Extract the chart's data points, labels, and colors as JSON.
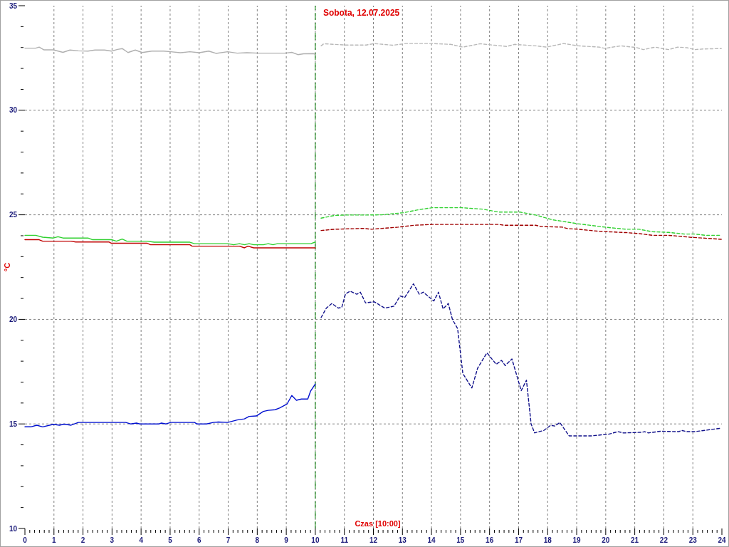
{
  "chart_data": {
    "type": "line",
    "xlabel": "Czas [10:00]",
    "ylabel": "°C",
    "xlim": [
      0,
      24
    ],
    "ylim": [
      10,
      35
    ],
    "xticks": [
      0,
      {
        "value": 0.167,
        "label": null
      },
      {
        "value": 0.333,
        "label": null
      },
      {
        "value": 0.5,
        "label": null
      },
      {
        "value": 0.667,
        "label": null
      },
      {
        "value": 0.833,
        "label": null
      },
      1,
      {
        "value": 1.167,
        "label": null
      },
      {
        "value": 1.333,
        "label": null
      },
      {
        "value": 1.5,
        "label": null
      },
      {
        "value": 1.667,
        "label": null
      },
      {
        "value": 1.833,
        "label": null
      },
      2,
      {
        "value": 2.167,
        "label": null
      },
      {
        "value": 2.333,
        "label": null
      },
      {
        "value": 2.5,
        "label": null
      },
      {
        "value": 2.667,
        "label": null
      },
      {
        "value": 2.833,
        "label": null
      },
      3,
      {
        "value": 3.167,
        "label": null
      },
      {
        "value": 3.333,
        "label": null
      },
      {
        "value": 3.5,
        "label": null
      },
      {
        "value": 3.667,
        "label": null
      },
      {
        "value": 3.833,
        "label": null
      },
      4,
      {
        "value": 4.167,
        "label": null
      },
      {
        "value": 4.333,
        "label": null
      },
      {
        "value": 4.5,
        "label": null
      },
      {
        "value": 4.667,
        "label": null
      },
      {
        "value": 4.833,
        "label": null
      },
      5,
      {
        "value": 5.167,
        "label": null
      },
      {
        "value": 5.333,
        "label": null
      },
      {
        "value": 5.5,
        "label": null
      },
      {
        "value": 5.667,
        "label": null
      },
      {
        "value": 5.833,
        "label": null
      },
      6,
      {
        "value": 6.167,
        "label": null
      },
      {
        "value": 6.333,
        "label": null
      },
      {
        "value": 6.5,
        "label": null
      },
      {
        "value": 6.667,
        "label": null
      },
      {
        "value": 6.833,
        "label": null
      },
      7,
      {
        "value": 7.167,
        "label": null
      },
      {
        "value": 7.333,
        "label": null
      },
      {
        "value": 7.5,
        "label": null
      },
      {
        "value": 7.667,
        "label": null
      },
      {
        "value": 7.833,
        "label": null
      },
      8,
      {
        "value": 8.167,
        "label": null
      },
      {
        "value": 8.333,
        "label": null
      },
      {
        "value": 8.5,
        "label": null
      },
      {
        "value": 8.667,
        "label": null
      },
      {
        "value": 8.833,
        "label": null
      },
      9,
      {
        "value": 9.167,
        "label": null
      },
      {
        "value": 9.333,
        "label": null
      },
      {
        "value": 9.5,
        "label": null
      },
      {
        "value": 9.667,
        "label": null
      },
      {
        "value": 9.833,
        "label": null
      },
      10,
      {
        "value": 10.167,
        "label": null
      },
      {
        "value": 10.333,
        "label": null
      },
      {
        "value": 10.5,
        "label": null
      },
      {
        "value": 10.667,
        "label": null
      },
      {
        "value": 10.833,
        "label": null
      },
      11,
      {
        "value": 11.167,
        "label": null
      },
      {
        "value": 11.333,
        "label": null
      },
      {
        "value": 11.5,
        "label": null
      },
      {
        "value": 11.667,
        "label": null
      },
      {
        "value": 11.833,
        "label": null
      },
      12,
      {
        "value": 12.167,
        "label": null
      },
      {
        "value": 12.333,
        "label": null
      },
      {
        "value": 12.5,
        "label": null
      },
      {
        "value": 12.667,
        "label": null
      },
      {
        "value": 12.833,
        "label": null
      },
      13,
      {
        "value": 13.167,
        "label": null
      },
      {
        "value": 13.333,
        "label": null
      },
      {
        "value": 13.5,
        "label": null
      },
      {
        "value": 13.667,
        "label": null
      },
      {
        "value": 13.833,
        "label": null
      },
      14,
      {
        "value": 14.167,
        "label": null
      },
      {
        "value": 14.333,
        "label": null
      },
      {
        "value": 14.5,
        "label": null
      },
      {
        "value": 14.667,
        "label": null
      },
      {
        "value": 14.833,
        "label": null
      },
      15,
      {
        "value": 15.167,
        "label": null
      },
      {
        "value": 15.333,
        "label": null
      },
      {
        "value": 15.5,
        "label": null
      },
      {
        "value": 15.667,
        "label": null
      },
      {
        "value": 15.833,
        "label": null
      },
      16,
      {
        "value": 16.167,
        "label": null
      },
      {
        "value": 16.333,
        "label": null
      },
      {
        "value": 16.5,
        "label": null
      },
      {
        "value": 16.667,
        "label": null
      },
      {
        "value": 16.833,
        "label": null
      },
      17,
      {
        "value": 17.167,
        "label": null
      },
      {
        "value": 17.333,
        "label": null
      },
      {
        "value": 17.5,
        "label": null
      },
      {
        "value": 17.667,
        "label": null
      },
      {
        "value": 17.833,
        "label": null
      },
      18,
      {
        "value": 18.167,
        "label": null
      },
      {
        "value": 18.333,
        "label": null
      },
      {
        "value": 18.5,
        "label": null
      },
      {
        "value": 18.667,
        "label": null
      },
      {
        "value": 18.833,
        "label": null
      },
      19,
      {
        "value": 19.167,
        "label": null
      },
      {
        "value": 19.333,
        "label": null
      },
      {
        "value": 19.5,
        "label": null
      },
      {
        "value": 19.667,
        "label": null
      },
      {
        "value": 19.833,
        "label": null
      },
      20,
      {
        "value": 20.167,
        "label": null
      },
      {
        "value": 20.333,
        "label": null
      },
      {
        "value": 20.5,
        "label": null
      },
      {
        "value": 20.667,
        "label": null
      },
      {
        "value": 20.833,
        "label": null
      },
      21,
      {
        "value": 21.167,
        "label": null
      },
      {
        "value": 21.333,
        "label": null
      },
      {
        "value": 21.5,
        "label": null
      },
      {
        "value": 21.667,
        "label": null
      },
      {
        "value": 21.833,
        "label": null
      },
      22,
      {
        "value": 22.167,
        "label": null
      },
      {
        "value": 22.333,
        "label": null
      },
      {
        "value": 22.5,
        "label": null
      },
      {
        "value": 22.667,
        "label": null
      },
      {
        "value": 22.833,
        "label": null
      },
      23,
      {
        "value": 23.167,
        "label": null
      },
      {
        "value": 23.333,
        "label": null
      },
      {
        "value": 23.5,
        "label": null
      },
      {
        "value": 23.667,
        "label": null
      },
      {
        "value": 23.833,
        "label": null
      },
      24
    ],
    "yticks": [
      10,
      {
        "value": 11,
        "label": null
      },
      {
        "value": 12,
        "label": null
      },
      {
        "value": 13,
        "label": null
      },
      {
        "value": 14,
        "label": null
      },
      15,
      {
        "value": 16,
        "label": null
      },
      {
        "value": 17,
        "label": null
      },
      {
        "value": 18,
        "label": null
      },
      {
        "value": 19,
        "label": null
      },
      20,
      {
        "value": 21,
        "label": null
      },
      {
        "value": 22,
        "label": null
      },
      {
        "value": 23,
        "label": null
      },
      {
        "value": 24,
        "label": null
      },
      25,
      {
        "value": 26,
        "label": null
      },
      {
        "value": 27,
        "label": null
      },
      {
        "value": 28,
        "label": null
      },
      {
        "value": 29,
        "label": null
      },
      30,
      {
        "value": 31,
        "label": null
      },
      {
        "value": 32,
        "label": null
      },
      {
        "value": 33,
        "label": null
      },
      {
        "value": 34,
        "label": null
      },
      35
    ],
    "grid": true,
    "ref_lines": [
      {
        "axis": "x",
        "value": 10,
        "label": "Sobota, 12.07.2025",
        "color": "#008000",
        "line_style": "dashed"
      }
    ],
    "series": [
      {
        "color": "#b0b0b0",
        "line_style": "solid",
        "x": [
          0,
          0.37,
          0.49,
          0.65,
          0.98,
          1.31,
          1.55,
          1.84,
          2.17,
          2.41,
          2.74,
          2.98,
          3.19,
          3.35,
          3.55,
          3.8,
          4.04,
          4.37,
          4.78,
          5.02,
          5.35,
          5.68,
          6.0,
          6.33,
          6.58,
          6.98,
          7.31,
          7.64,
          8.05,
          8.95,
          9.19,
          9.4,
          9.6,
          9.93,
          10.0
        ],
        "values": [
          32.97,
          32.97,
          33.02,
          32.89,
          32.89,
          32.77,
          32.88,
          32.84,
          32.83,
          32.88,
          32.88,
          32.83,
          32.91,
          32.95,
          32.76,
          32.88,
          32.76,
          32.83,
          32.83,
          32.8,
          32.75,
          32.8,
          32.75,
          32.83,
          32.72,
          32.8,
          32.73,
          32.75,
          32.73,
          32.73,
          32.77,
          32.66,
          32.7,
          32.71,
          32.67
        ]
      },
      {
        "color": "#b8b8b8",
        "line_style": "dashed",
        "x": [
          10.2,
          10.29,
          11.02,
          11.75,
          12.03,
          12.66,
          13.12,
          14.03,
          14.67,
          15.08,
          15.68,
          16.59,
          16.86,
          17.6,
          17.96,
          18.55,
          19.05,
          19.78,
          19.97,
          20.52,
          21.06,
          21.29,
          21.7,
          22.16,
          22.48,
          22.8,
          23.07,
          23.35,
          23.98
        ],
        "values": [
          33.08,
          33.18,
          33.12,
          33.12,
          33.19,
          33.11,
          33.19,
          33.19,
          33.15,
          33.02,
          33.18,
          33.05,
          33.15,
          33.08,
          33.02,
          33.19,
          33.08,
          33.02,
          32.96,
          33.08,
          33.0,
          32.9,
          33.02,
          32.9,
          33.02,
          32.99,
          32.9,
          32.93,
          32.95
        ]
      },
      {
        "color": "#30d030",
        "line_style": "solid",
        "x": [
          0,
          0.37,
          0.61,
          0.98,
          1.14,
          1.31,
          2.17,
          2.33,
          2.98,
          3.15,
          3.35,
          3.51,
          4.21,
          4.45,
          5.68,
          5.84,
          6.98,
          7.19,
          7.39,
          7.56,
          7.72,
          7.88,
          8.21,
          8.38,
          8.54,
          8.7,
          9.85,
          10.0
        ],
        "values": [
          24.02,
          24.02,
          23.93,
          23.89,
          23.95,
          23.89,
          23.89,
          23.81,
          23.81,
          23.74,
          23.84,
          23.74,
          23.74,
          23.69,
          23.69,
          23.62,
          23.62,
          23.57,
          23.62,
          23.57,
          23.62,
          23.57,
          23.57,
          23.62,
          23.57,
          23.62,
          23.62,
          23.7
        ]
      },
      {
        "color": "#30d030",
        "line_style": "dashed",
        "x": [
          10.2,
          10.66,
          11.02,
          11.75,
          12.29,
          13.03,
          13.58,
          14.03,
          15.04,
          15.77,
          16.32,
          17.05,
          17.59,
          18.14,
          18.69,
          19.05,
          19.97,
          20.7,
          21.15,
          21.61,
          22.16,
          22.71,
          23.07,
          23.44,
          23.98
        ],
        "values": [
          24.84,
          24.97,
          24.99,
          24.99,
          25.0,
          25.1,
          25.25,
          25.34,
          25.34,
          25.27,
          25.13,
          25.13,
          24.99,
          24.77,
          24.65,
          24.57,
          24.41,
          24.31,
          24.31,
          24.19,
          24.16,
          24.08,
          24.08,
          24.02,
          24.02
        ]
      },
      {
        "color": "#c00000",
        "line_style": "solid",
        "x": [
          0,
          0.49,
          0.61,
          1.59,
          1.75,
          2.9,
          2.98,
          4.21,
          4.33,
          5.68,
          5.76,
          7.39,
          7.56,
          7.68,
          7.88,
          10.0
        ],
        "values": [
          23.81,
          23.81,
          23.74,
          23.74,
          23.7,
          23.7,
          23.64,
          23.64,
          23.57,
          23.57,
          23.5,
          23.5,
          23.42,
          23.5,
          23.42,
          23.42
        ]
      },
      {
        "color": "#a00000",
        "line_style": "dashed",
        "x": [
          10.2,
          10.66,
          11.66,
          11.93,
          12.85,
          13.39,
          14.03,
          16.32,
          16.5,
          17.59,
          17.78,
          18.51,
          18.69,
          19.05,
          19.78,
          20.7,
          21.15,
          21.61,
          22.16,
          22.89,
          23.98
        ],
        "values": [
          24.25,
          24.31,
          24.35,
          24.31,
          24.41,
          24.5,
          24.54,
          24.54,
          24.5,
          24.5,
          24.44,
          24.41,
          24.34,
          24.31,
          24.21,
          24.15,
          24.1,
          24.02,
          24.02,
          23.93,
          23.83
        ]
      },
      {
        "color": "#0010d0",
        "line_style": "solid",
        "x": [
          0,
          0.2,
          0.41,
          0.61,
          0.98,
          1.19,
          1.35,
          1.59,
          1.84,
          3.47,
          3.64,
          3.84,
          3.96,
          4.62,
          4.7,
          4.86,
          5.02,
          5.84,
          5.92,
          6.25,
          6.49,
          6.66,
          6.98,
          7.31,
          7.56,
          7.72,
          7.97,
          8.21,
          8.38,
          8.62,
          8.78,
          9.03,
          9.19,
          9.35,
          9.52,
          9.74,
          9.84,
          10.0
        ],
        "values": [
          14.86,
          14.86,
          14.94,
          14.86,
          14.98,
          14.94,
          14.99,
          14.94,
          15.07,
          15.07,
          15.0,
          15.04,
          15.0,
          15.0,
          15.04,
          15.0,
          15.07,
          15.07,
          15.0,
          15.0,
          15.07,
          15.09,
          15.07,
          15.19,
          15.24,
          15.36,
          15.38,
          15.6,
          15.65,
          15.68,
          15.77,
          15.96,
          16.36,
          16.13,
          16.19,
          16.19,
          16.58,
          16.91
        ]
      },
      {
        "color": "#10108a",
        "line_style": "dashed",
        "x": [
          10.2,
          10.38,
          10.57,
          10.79,
          10.91,
          11.04,
          11.2,
          11.43,
          11.55,
          11.73,
          12.03,
          12.39,
          12.71,
          12.92,
          13.08,
          13.38,
          13.58,
          13.72,
          14.08,
          14.24,
          14.4,
          14.58,
          14.72,
          14.9,
          15.08,
          15.39,
          15.59,
          15.91,
          16.23,
          16.41,
          16.54,
          16.77,
          17.09,
          17.27,
          17.43,
          17.55,
          17.87,
          18.1,
          18.25,
          18.42,
          18.74,
          19.51,
          20.1,
          20.42,
          20.61,
          21.25,
          21.34,
          21.47,
          21.88,
          22.52,
          22.61,
          22.79,
          23.07,
          23.94
        ],
        "values": [
          20.09,
          20.54,
          20.76,
          20.54,
          20.57,
          21.22,
          21.35,
          21.2,
          21.3,
          20.79,
          20.84,
          20.54,
          20.63,
          21.12,
          21.05,
          21.7,
          21.2,
          21.3,
          20.88,
          21.3,
          20.5,
          20.76,
          20.0,
          19.56,
          17.41,
          16.72,
          17.67,
          18.4,
          17.85,
          18.04,
          17.79,
          18.11,
          16.59,
          17.09,
          15.01,
          14.57,
          14.69,
          14.93,
          14.9,
          15.07,
          14.43,
          14.43,
          14.51,
          14.63,
          14.57,
          14.6,
          14.63,
          14.57,
          14.65,
          14.63,
          14.69,
          14.63,
          14.63,
          14.79
        ]
      }
    ]
  }
}
